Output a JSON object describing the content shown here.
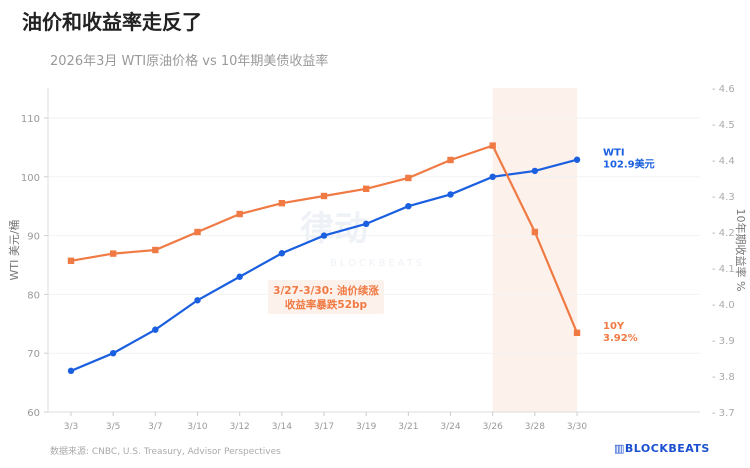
{
  "title": "油价和收益率走反了",
  "subtitle": "2026年3月 WTI原油价格 vs 10年期美债收益率",
  "source": "数据来源: CNBC, U.S. Treasury, Advisor Perspectives",
  "logo": "BLOCKBEATS",
  "watermark": "律动 BLOCKBEATS",
  "colors": {
    "wti": "#1a5fe0",
    "y10": "#f07a44",
    "band": "#fdf1eb"
  },
  "chart_data": {
    "type": "line",
    "categories": [
      "3/3",
      "3/5",
      "3/7",
      "3/10",
      "3/12",
      "3/14",
      "3/17",
      "3/19",
      "3/21",
      "3/24",
      "3/26",
      "3/28",
      "3/30"
    ],
    "series": [
      {
        "name": "WTI",
        "axis": "left",
        "marker": "circle",
        "values": [
          67,
          70,
          74,
          79,
          83,
          87,
          90,
          92,
          95,
          97,
          100,
          101,
          102.9
        ],
        "end_label": [
          "WTI",
          "102.9美元"
        ]
      },
      {
        "name": "10Y",
        "axis": "right",
        "marker": "square",
        "values": [
          4.12,
          4.14,
          4.15,
          4.2,
          4.25,
          4.28,
          4.3,
          4.32,
          4.35,
          4.4,
          4.44,
          4.2,
          3.92
        ],
        "end_label": [
          "10Y",
          "3.92%"
        ]
      }
    ],
    "ylabel_left": "WTI 美元/桶",
    "ylim_left": [
      60,
      110
    ],
    "yticks_left": [
      "60",
      "70",
      "80",
      "90",
      "100",
      "110"
    ],
    "ylabel_right": "10年期收益率 %",
    "ylim_right": [
      3.7,
      4.6
    ],
    "yticks_right": [
      "3.7",
      "3.8",
      "3.9",
      "4.0",
      "4.1",
      "4.2",
      "4.3",
      "4.4",
      "4.5",
      "4.6"
    ],
    "shaded_range": [
      "3/26",
      "3/30"
    ],
    "annotation": [
      "3/27-3/30: 油价续涨",
      "收益率暴跌52bp"
    ],
    "grid": true
  }
}
